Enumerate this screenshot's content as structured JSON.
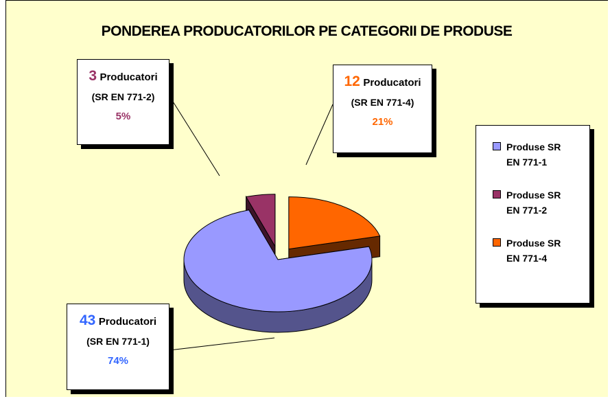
{
  "chart_data": {
    "type": "pie3d",
    "title": "PONDEREA PRODUCATORILOR PE CATEGORII DE PRODUSE",
    "categories": [
      "Produse SR EN 771-1",
      "Produse SR EN 771-2",
      "Produse SR EN 771-4"
    ],
    "values": [
      74,
      5,
      21
    ],
    "value_labels": [
      "74%",
      "5%",
      "21%"
    ],
    "counts": [
      43,
      3,
      12
    ],
    "count_unit": "Producatori",
    "codes": [
      "(SR EN 771-1)",
      "(SR EN 771-2)",
      "(SR EN 771-4)"
    ],
    "colors": [
      "#9999ff",
      "#993366",
      "#ff6600"
    ],
    "label_colors": [
      "#3366ff",
      "#993366",
      "#ff6600"
    ],
    "legend": "right"
  }
}
